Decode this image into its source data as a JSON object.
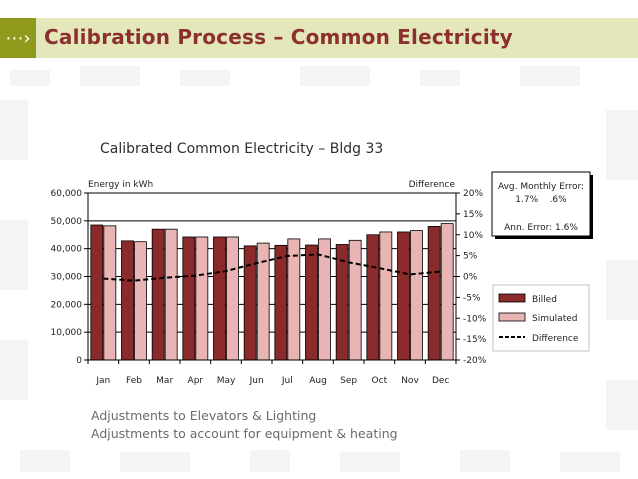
{
  "header": {
    "title": "Calibration Process – Common Electricity",
    "arrow_icon": "dotted-arrow-right-icon"
  },
  "notes": [
    "Adjustments to Elevators & Lighting",
    "Adjustments to account for equipment & heating"
  ],
  "colors": {
    "header_band": "#e3e7b9",
    "accent_green": "#8f9a1c",
    "title_red": "#8b2f2f",
    "billed": "#8b2a2a",
    "simulated": "#e8b4b4"
  },
  "chart_data": {
    "type": "bar",
    "title": "Calibrated Common Electricity – Bldg 33",
    "ylabel": "Energy in kWh",
    "y2label": "Difference",
    "categories": [
      "Jan",
      "Feb",
      "Mar",
      "Apr",
      "May",
      "Jun",
      "Jul",
      "Aug",
      "Sep",
      "Oct",
      "Nov",
      "Dec"
    ],
    "series": [
      {
        "name": "Billed",
        "kind": "bar",
        "values": [
          48500,
          42800,
          47000,
          44200,
          44200,
          41000,
          41200,
          41300,
          41500,
          45000,
          46000,
          48000
        ]
      },
      {
        "name": "Simulated",
        "kind": "bar",
        "values": [
          48200,
          42500,
          47000,
          44200,
          44200,
          42000,
          43500,
          43500,
          43000,
          46000,
          46500,
          49000
        ]
      },
      {
        "name": "Difference",
        "kind": "line",
        "axis": "right",
        "values": [
          -0.5,
          -1.0,
          -0.3,
          0.2,
          1.3,
          3.2,
          4.9,
          5.3,
          3.4,
          2.0,
          0.5,
          1.2
        ]
      }
    ],
    "ylim": [
      0,
      60000
    ],
    "yticks": [
      0,
      10000,
      20000,
      30000,
      40000,
      50000,
      60000
    ],
    "ytick_labels": [
      "0",
      "10,000",
      "20,000",
      "30,000",
      "40,000",
      "50,000",
      "60,000"
    ],
    "y2lim": [
      -20,
      20
    ],
    "y2ticks": [
      -20,
      -15,
      -10,
      -5,
      0,
      5,
      10,
      15,
      20
    ],
    "y2tick_labels": [
      "-20%",
      "-15%",
      "-10%",
      "-5%",
      "0%",
      "5%",
      "10%",
      "15%",
      "20%"
    ],
    "legend": {
      "entries": [
        "Billed",
        "Simulated",
        "Difference"
      ],
      "placement": "bottom-right"
    },
    "annotation": {
      "title": "Avg. Monthly Error:",
      "values": "1.7%    .6%",
      "annual": "Ann. Error: 1.6%"
    }
  }
}
